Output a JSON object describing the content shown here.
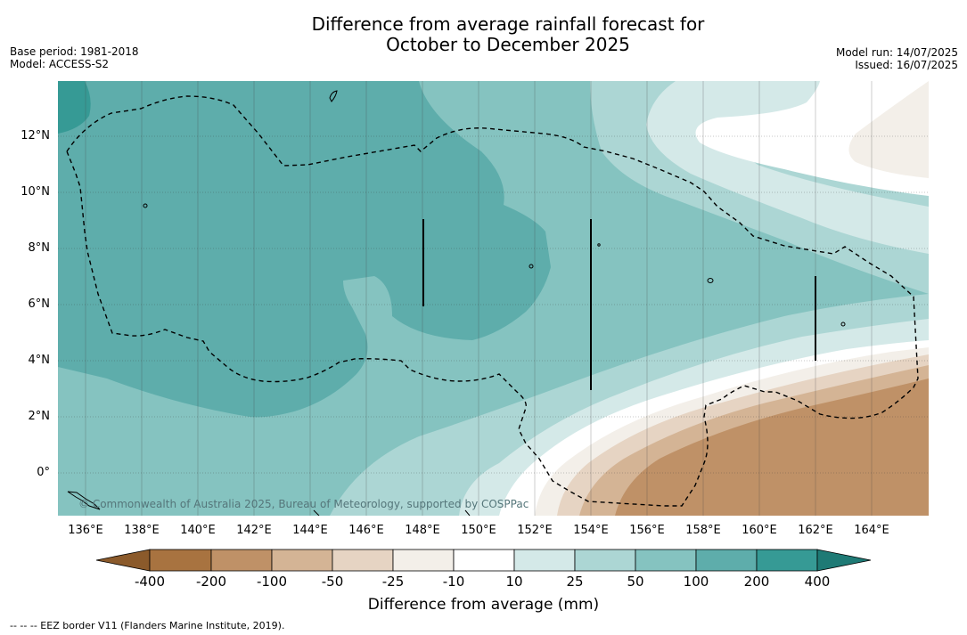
{
  "title": {
    "line1": "Difference from average rainfall forecast for",
    "line2": "October to December 2025"
  },
  "meta_left": {
    "base_period": "Base period: 1981-2018",
    "model": "Model: ACCESS-S2"
  },
  "meta_right": {
    "model_run": "Model run: 14/07/2025",
    "issued": "Issued: 16/07/2025"
  },
  "map": {
    "lat_labels": [
      "12°N",
      "10°N",
      "8°N",
      "6°N",
      "4°N",
      "2°N",
      "0°"
    ],
    "lon_labels": [
      "136°E",
      "138°E",
      "140°E",
      "142°E",
      "144°E",
      "146°E",
      "148°E",
      "150°E",
      "152°E",
      "154°E",
      "156°E",
      "158°E",
      "160°E",
      "162°E",
      "164°E"
    ],
    "copyright": "© Commonwealth of Australia 2025, Bureau of Meteorology, supported by COSPPac"
  },
  "colorbar": {
    "title": "Difference from average (mm)",
    "labels": [
      "-400",
      "-200",
      "-100",
      "-50",
      "-25",
      "-10",
      "10",
      "25",
      "50",
      "100",
      "200",
      "400"
    ],
    "colors": [
      "#8b5a2b",
      "#a87340",
      "#bf9167",
      "#d4b495",
      "#e6d4c3",
      "#f3efe9",
      "#ffffff",
      "#d4e9e8",
      "#acd6d4",
      "#85c3c0",
      "#5eadab",
      "#369a95",
      "#1e7a75"
    ]
  },
  "footer": "--  --  -- EEZ border V11 (Flanders Marine Institute, 2019)."
}
